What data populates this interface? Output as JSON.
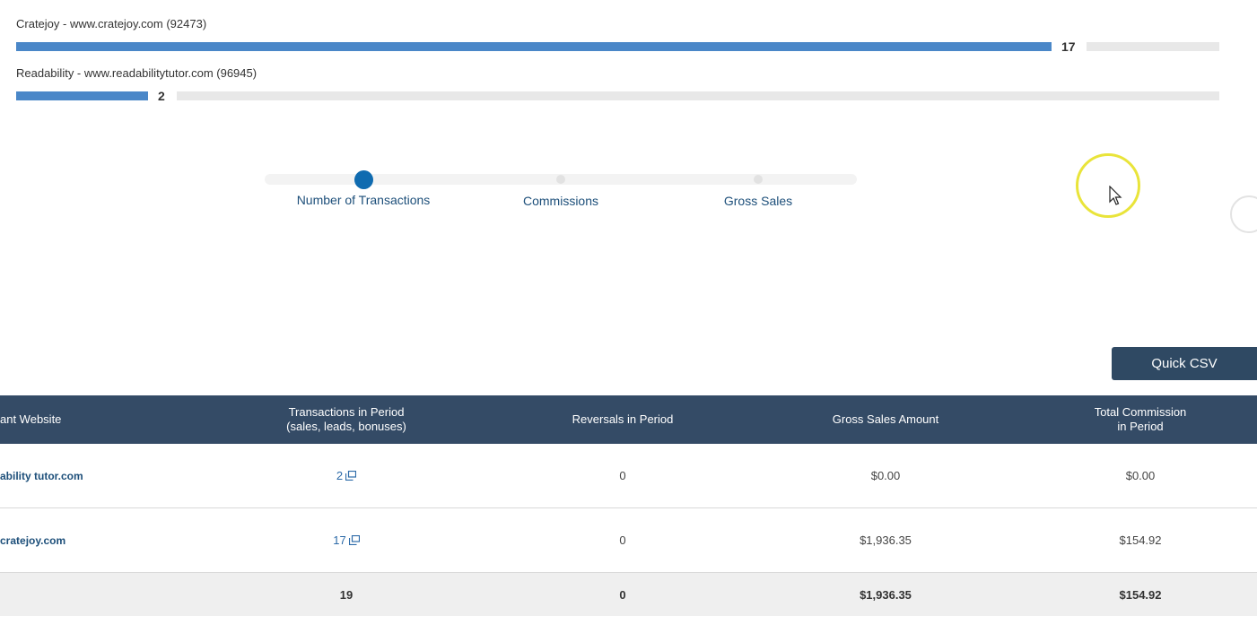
{
  "merchant_bars": [
    {
      "label": "Cratejoy - www.cratejoy.com (92473)",
      "value": "17",
      "fraction": 1.0
    },
    {
      "label": "Readability - www.readabilitytutor.com (96945)",
      "value": "2",
      "fraction": 0.1176
    }
  ],
  "metric_toggle": {
    "options": [
      "Number of Transactions",
      "Commissions",
      "Gross Sales"
    ],
    "selected": "Number of Transactions"
  },
  "toolbar": {
    "quick_csv_label": "Quick CSV"
  },
  "table": {
    "headers": {
      "merchant": "ant Website",
      "transactions_line1": "Transactions in Period",
      "transactions_line2": "(sales, leads, bonuses)",
      "reversals": "Reversals in Period",
      "gross_sales": "Gross Sales Amount",
      "commission_line1": "Total Commission",
      "commission_line2": "in Period"
    },
    "rows": [
      {
        "merchant": "ability tutor.com",
        "transactions": "2",
        "reversals": "0",
        "gross_sales": "$0.00",
        "commission": "$0.00"
      },
      {
        "merchant": "cratejoy.com",
        "transactions": "17",
        "reversals": "0",
        "gross_sales": "$1,936.35",
        "commission": "$154.92"
      }
    ],
    "totals": {
      "transactions": "19",
      "reversals": "0",
      "gross_sales": "$1,936.35",
      "commission": "$154.92"
    }
  },
  "colors": {
    "bar_fill": "#4a87c8",
    "header_bg": "#344b66",
    "button_bg": "#2f4963",
    "active_dot": "#0f6bb0",
    "cursor_highlight": "#e9e43a"
  }
}
